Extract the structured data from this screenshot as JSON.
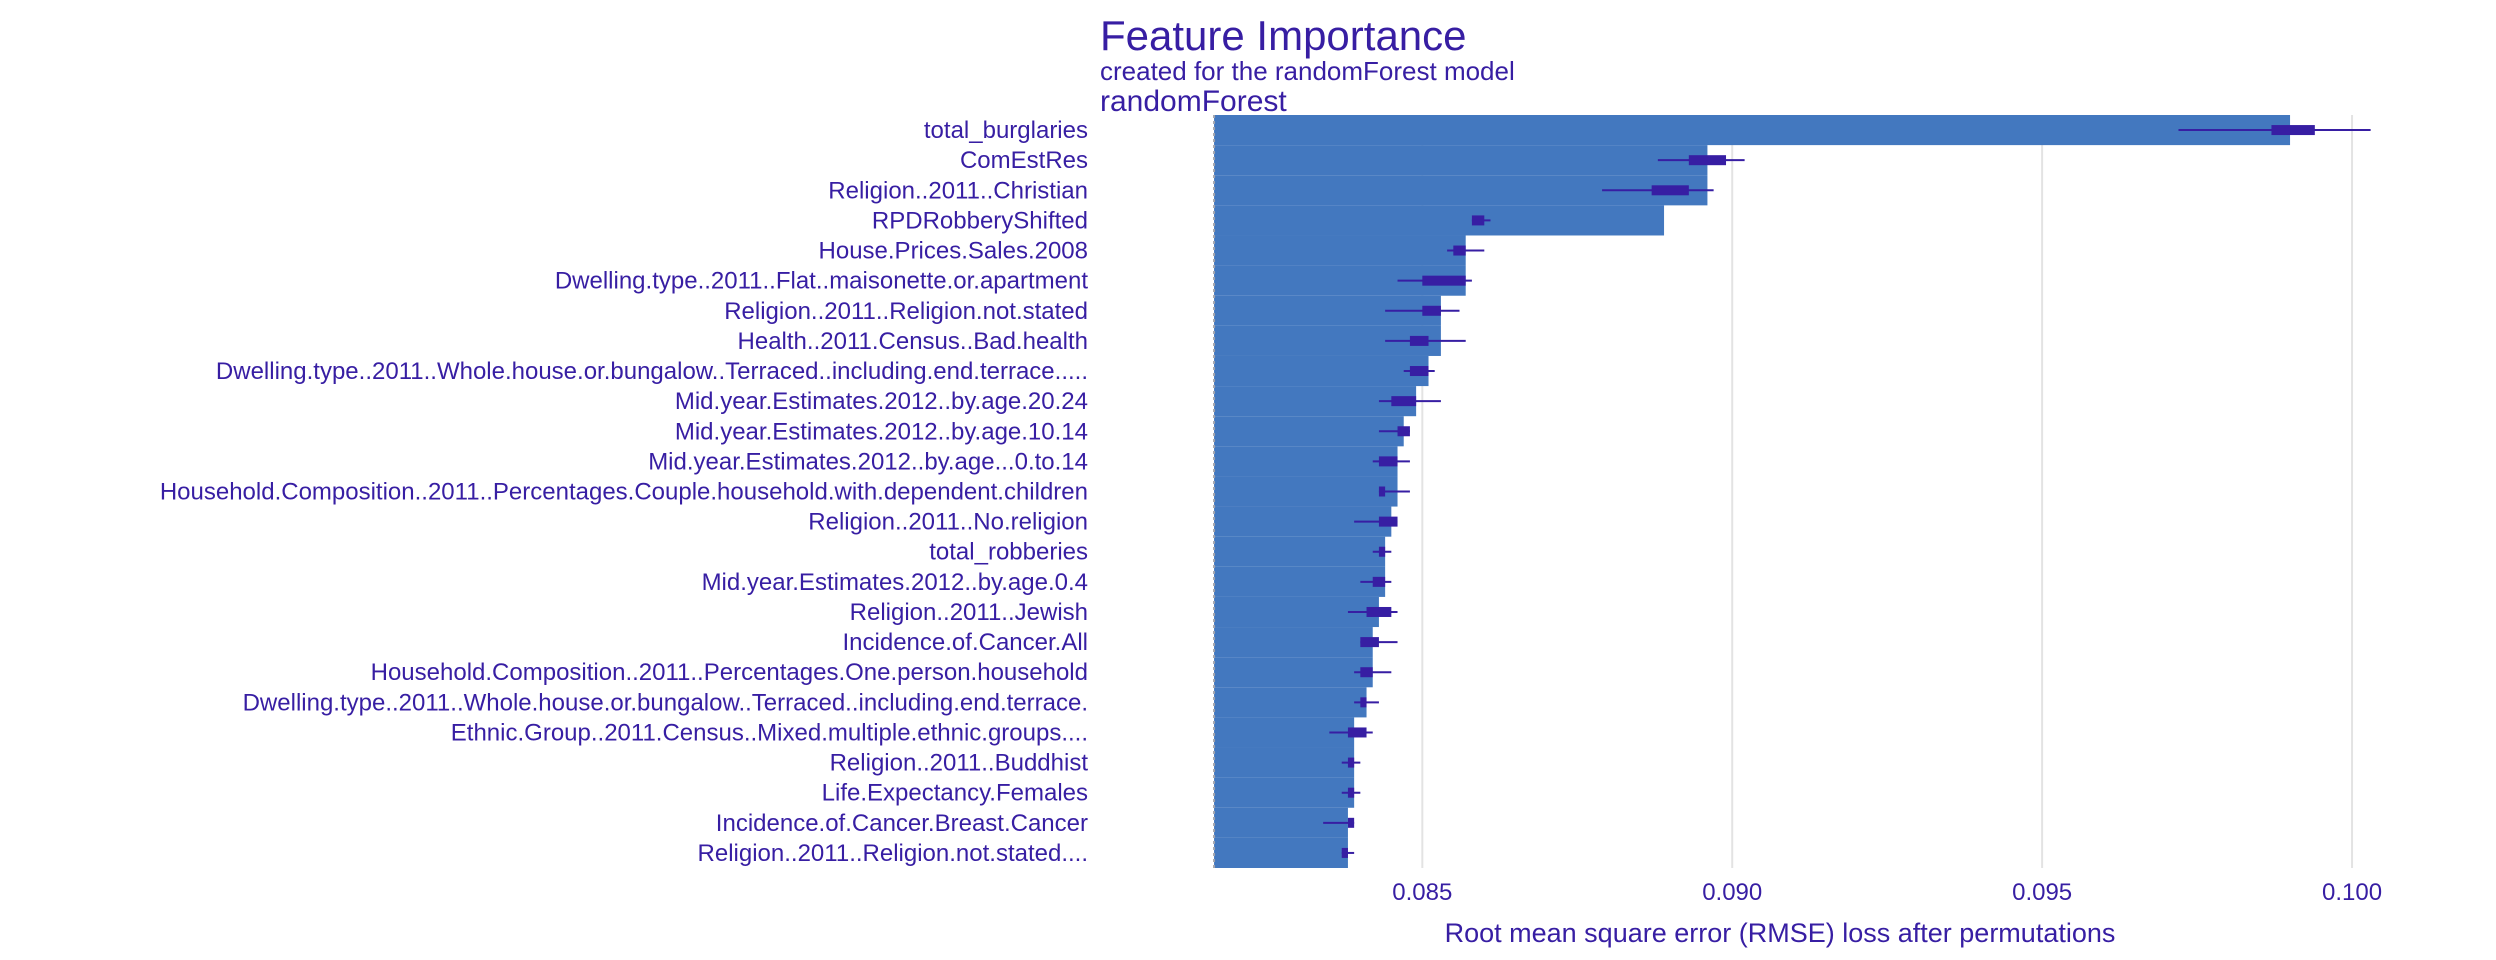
{
  "chart_data": {
    "type": "bar",
    "title": "Feature Importance",
    "subtitle": "created for the randomForest model",
    "panel_label": "randomForest",
    "xlabel": "Root mean square error (RMSE) loss after permutations",
    "ylabel": "",
    "baseline": 0.08164,
    "xlim": [
      0.0808,
      0.1015
    ],
    "xticks": [
      0.085,
      0.09,
      0.095,
      0.1
    ],
    "xtick_labels": [
      "0.085",
      "0.090",
      "0.095",
      "0.100"
    ],
    "grid": true,
    "colors": {
      "bar": "#4378bf",
      "text": "#371ea3",
      "boxplot": "#371ea3",
      "grid": "#e3e3e3",
      "baseline": "#a0a4b0"
    },
    "bars": [
      {
        "label": "total_burglaries",
        "value": 0.099,
        "whisker_low": 0.0972,
        "q1": 0.0987,
        "q3": 0.0994,
        "whisker_high": 0.1003
      },
      {
        "label": "ComEstRes",
        "value": 0.0896,
        "whisker_low": 0.0888,
        "q1": 0.0893,
        "q3": 0.0899,
        "whisker_high": 0.0902
      },
      {
        "label": "Religion..2011..Christian",
        "value": 0.0896,
        "whisker_low": 0.0879,
        "q1": 0.0887,
        "q3": 0.0893,
        "whisker_high": 0.0897
      },
      {
        "label": "RPDRobberyShifted",
        "value": 0.0889,
        "whisker_low": 0.0858,
        "q1": 0.0858,
        "q3": 0.086,
        "whisker_high": 0.0861
      },
      {
        "label": "House.Prices.Sales.2008",
        "value": 0.0857,
        "whisker_low": 0.0854,
        "q1": 0.0855,
        "q3": 0.0857,
        "whisker_high": 0.086
      },
      {
        "label": "Dwelling.type..2011..Flat..maisonette.or.apartment",
        "value": 0.0857,
        "whisker_low": 0.0846,
        "q1": 0.085,
        "q3": 0.0857,
        "whisker_high": 0.0858
      },
      {
        "label": "Religion..2011..Religion.not.stated",
        "value": 0.0853,
        "whisker_low": 0.0844,
        "q1": 0.085,
        "q3": 0.0853,
        "whisker_high": 0.0856
      },
      {
        "label": "Health..2011.Census..Bad.health",
        "value": 0.0853,
        "whisker_low": 0.0844,
        "q1": 0.0848,
        "q3": 0.0851,
        "whisker_high": 0.0857
      },
      {
        "label": "Dwelling.type..2011..Whole.house.or.bungalow..Terraced..including.end.terrace.....",
        "value": 0.0851,
        "whisker_low": 0.0847,
        "q1": 0.0848,
        "q3": 0.0851,
        "whisker_high": 0.0852
      },
      {
        "label": "Mid.year.Estimates.2012..by.age.20.24",
        "value": 0.0849,
        "whisker_low": 0.0843,
        "q1": 0.0845,
        "q3": 0.0849,
        "whisker_high": 0.0853
      },
      {
        "label": "Mid.year.Estimates.2012..by.age.10.14",
        "value": 0.0847,
        "whisker_low": 0.0843,
        "q1": 0.0846,
        "q3": 0.0848,
        "whisker_high": 0.0848
      },
      {
        "label": "Mid.year.Estimates.2012..by.age...0.to.14",
        "value": 0.0846,
        "whisker_low": 0.0842,
        "q1": 0.0843,
        "q3": 0.0846,
        "whisker_high": 0.0848
      },
      {
        "label": "Household.Composition..2011..Percentages.Couple.household.with.dependent.children",
        "value": 0.0846,
        "whisker_low": 0.0843,
        "q1": 0.0843,
        "q3": 0.0844,
        "whisker_high": 0.0848
      },
      {
        "label": "Religion..2011..No.religion",
        "value": 0.0845,
        "whisker_low": 0.0839,
        "q1": 0.0843,
        "q3": 0.0846,
        "whisker_high": 0.0846
      },
      {
        "label": "total_robberies",
        "value": 0.0844,
        "whisker_low": 0.0842,
        "q1": 0.0843,
        "q3": 0.0844,
        "whisker_high": 0.0845
      },
      {
        "label": "Mid.year.Estimates.2012..by.age.0.4",
        "value": 0.0844,
        "whisker_low": 0.084,
        "q1": 0.0842,
        "q3": 0.0844,
        "whisker_high": 0.0845
      },
      {
        "label": "Religion..2011..Jewish",
        "value": 0.0843,
        "whisker_low": 0.0838,
        "q1": 0.0841,
        "q3": 0.0845,
        "whisker_high": 0.0846
      },
      {
        "label": "Incidence.of.Cancer.All",
        "value": 0.0842,
        "whisker_low": 0.084,
        "q1": 0.084,
        "q3": 0.0843,
        "whisker_high": 0.0846
      },
      {
        "label": "Household.Composition..2011..Percentages.One.person.household",
        "value": 0.0842,
        "whisker_low": 0.0839,
        "q1": 0.084,
        "q3": 0.0842,
        "whisker_high": 0.0845
      },
      {
        "label": "Dwelling.type..2011..Whole.house.or.bungalow..Terraced..including.end.terrace.",
        "value": 0.0841,
        "whisker_low": 0.0839,
        "q1": 0.084,
        "q3": 0.0841,
        "whisker_high": 0.0843
      },
      {
        "label": "Ethnic.Group..2011.Census..Mixed.multiple.ethnic.groups....",
        "value": 0.0839,
        "whisker_low": 0.0835,
        "q1": 0.0838,
        "q3": 0.0841,
        "whisker_high": 0.0842
      },
      {
        "label": "Religion..2011..Buddhist",
        "value": 0.0839,
        "whisker_low": 0.0837,
        "q1": 0.0838,
        "q3": 0.0839,
        "whisker_high": 0.084
      },
      {
        "label": "Life.Expectancy.Females",
        "value": 0.0839,
        "whisker_low": 0.0837,
        "q1": 0.0838,
        "q3": 0.0839,
        "whisker_high": 0.084
      },
      {
        "label": "Incidence.of.Cancer.Breast.Cancer",
        "value": 0.0838,
        "whisker_low": 0.0834,
        "q1": 0.0838,
        "q3": 0.0839,
        "whisker_high": 0.0839
      },
      {
        "label": "Religion..2011..Religion.not.stated....",
        "value": 0.0838,
        "whisker_low": 0.0837,
        "q1": 0.0837,
        "q3": 0.0838,
        "whisker_high": 0.0839
      }
    ]
  }
}
